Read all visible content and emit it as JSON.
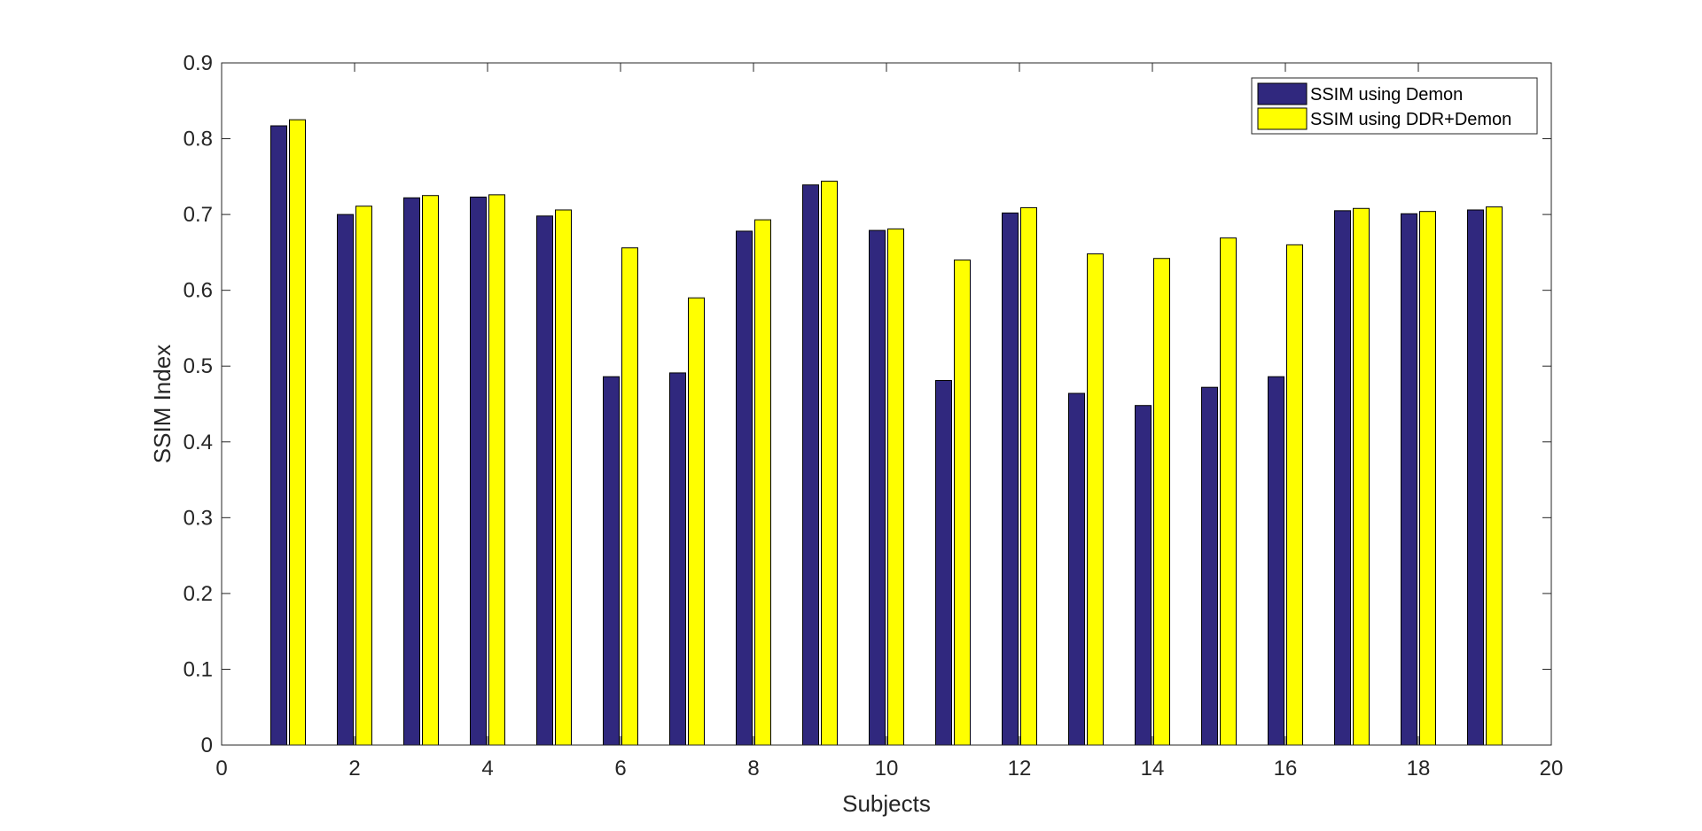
{
  "chart_data": {
    "type": "bar",
    "title": "",
    "xlabel": "Subjects",
    "ylabel": "SSIM Index",
    "xlim": [
      0,
      20
    ],
    "ylim": [
      0,
      0.9
    ],
    "xticks": [
      0,
      2,
      4,
      6,
      8,
      10,
      12,
      14,
      16,
      18,
      20
    ],
    "yticks": [
      0,
      0.1,
      0.2,
      0.3,
      0.4,
      0.5,
      0.6,
      0.7,
      0.8,
      0.9
    ],
    "grid": false,
    "legend_position": "top-right",
    "categories": [
      1,
      2,
      3,
      4,
      5,
      6,
      7,
      8,
      9,
      10,
      11,
      12,
      13,
      14,
      15,
      16,
      17,
      18,
      19
    ],
    "series": [
      {
        "name": "SSIM using Demon",
        "color": "#30287e",
        "values": [
          0.817,
          0.7,
          0.722,
          0.723,
          0.698,
          0.486,
          0.491,
          0.678,
          0.739,
          0.679,
          0.481,
          0.702,
          0.464,
          0.448,
          0.472,
          0.486,
          0.705,
          0.701,
          0.706
        ]
      },
      {
        "name": "SSIM using DDR+Demon",
        "color": "#ffff00",
        "values": [
          0.825,
          0.711,
          0.725,
          0.726,
          0.706,
          0.656,
          0.59,
          0.693,
          0.744,
          0.681,
          0.64,
          0.709,
          0.648,
          0.642,
          0.669,
          0.66,
          0.708,
          0.704,
          0.71
        ]
      }
    ]
  }
}
